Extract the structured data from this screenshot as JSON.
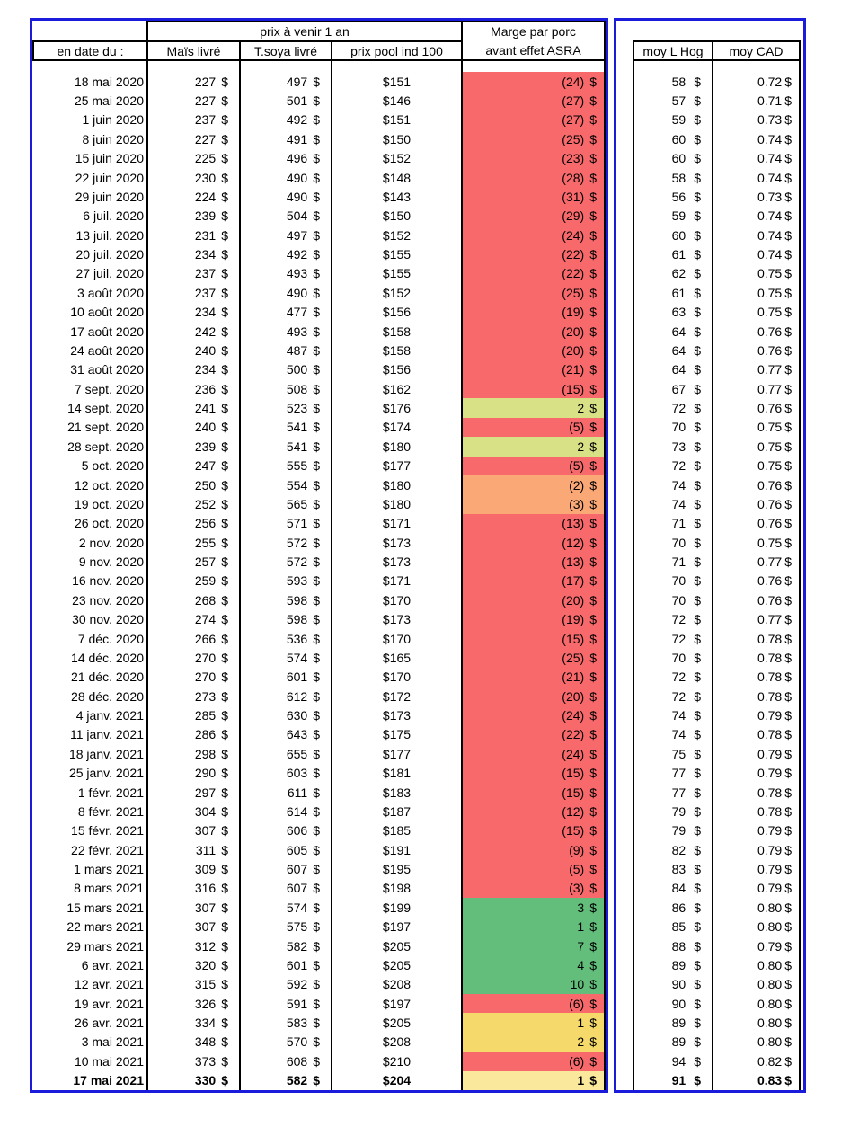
{
  "table": {
    "currency": "$",
    "header": {
      "date_label": "en date du :",
      "group_label": "prix à venir 1 an",
      "col_mais": "Maïs livré",
      "col_soya": "T.soya livré",
      "col_pool": "prix pool ind 100",
      "marge_line1": "Marge par porc",
      "marge_line2": "avant effet ASRA",
      "col_hog": "moy L Hog",
      "col_cad": "moy CAD"
    },
    "colors": {
      "red": "#F8696B",
      "orange": "#FBA877",
      "yellowgreen": "#D9E187",
      "green": "#63BE7B",
      "yellow": "#F6D96B",
      "lightyellow": "#FAE89C",
      "table_border_blue": "#1B1BDC",
      "grid_black": "#000000"
    },
    "rows": [
      {
        "date": "18 mai 2020",
        "mais": "227",
        "soya": "497",
        "pool": "$151",
        "marge": "(24)",
        "color": "red",
        "hog": "58",
        "cad": "0.72"
      },
      {
        "date": "25 mai 2020",
        "mais": "227",
        "soya": "501",
        "pool": "$146",
        "marge": "(27)",
        "color": "red",
        "hog": "57",
        "cad": "0.71"
      },
      {
        "date": "1 juin 2020",
        "mais": "237",
        "soya": "492",
        "pool": "$151",
        "marge": "(27)",
        "color": "red",
        "hog": "59",
        "cad": "0.73"
      },
      {
        "date": "8 juin 2020",
        "mais": "227",
        "soya": "491",
        "pool": "$150",
        "marge": "(25)",
        "color": "red",
        "hog": "60",
        "cad": "0.74"
      },
      {
        "date": "15 juin 2020",
        "mais": "225",
        "soya": "496",
        "pool": "$152",
        "marge": "(23)",
        "color": "red",
        "hog": "60",
        "cad": "0.74"
      },
      {
        "date": "22 juin 2020",
        "mais": "230",
        "soya": "490",
        "pool": "$148",
        "marge": "(28)",
        "color": "red",
        "hog": "58",
        "cad": "0.74"
      },
      {
        "date": "29 juin 2020",
        "mais": "224",
        "soya": "490",
        "pool": "$143",
        "marge": "(31)",
        "color": "red",
        "hog": "56",
        "cad": "0.73"
      },
      {
        "date": "6 juil. 2020",
        "mais": "239",
        "soya": "504",
        "pool": "$150",
        "marge": "(29)",
        "color": "red",
        "hog": "59",
        "cad": "0.74"
      },
      {
        "date": "13 juil. 2020",
        "mais": "231",
        "soya": "497",
        "pool": "$152",
        "marge": "(24)",
        "color": "red",
        "hog": "60",
        "cad": "0.74"
      },
      {
        "date": "20 juil. 2020",
        "mais": "234",
        "soya": "492",
        "pool": "$155",
        "marge": "(22)",
        "color": "red",
        "hog": "61",
        "cad": "0.74"
      },
      {
        "date": "27 juil. 2020",
        "mais": "237",
        "soya": "493",
        "pool": "$155",
        "marge": "(22)",
        "color": "red",
        "hog": "62",
        "cad": "0.75"
      },
      {
        "date": "3 août 2020",
        "mais": "237",
        "soya": "490",
        "pool": "$152",
        "marge": "(25)",
        "color": "red",
        "hog": "61",
        "cad": "0.75"
      },
      {
        "date": "10 août 2020",
        "mais": "234",
        "soya": "477",
        "pool": "$156",
        "marge": "(19)",
        "color": "red",
        "hog": "63",
        "cad": "0.75"
      },
      {
        "date": "17 août 2020",
        "mais": "242",
        "soya": "493",
        "pool": "$158",
        "marge": "(20)",
        "color": "red",
        "hog": "64",
        "cad": "0.76"
      },
      {
        "date": "24 août 2020",
        "mais": "240",
        "soya": "487",
        "pool": "$158",
        "marge": "(20)",
        "color": "red",
        "hog": "64",
        "cad": "0.76"
      },
      {
        "date": "31 août 2020",
        "mais": "234",
        "soya": "500",
        "pool": "$156",
        "marge": "(21)",
        "color": "red",
        "hog": "64",
        "cad": "0.77"
      },
      {
        "date": "7 sept. 2020",
        "mais": "236",
        "soya": "508",
        "pool": "$162",
        "marge": "(15)",
        "color": "red",
        "hog": "67",
        "cad": "0.77"
      },
      {
        "date": "14 sept. 2020",
        "mais": "241",
        "soya": "523",
        "pool": "$176",
        "marge": "2",
        "color": "yellowgreen",
        "hog": "72",
        "cad": "0.76"
      },
      {
        "date": "21 sept. 2020",
        "mais": "240",
        "soya": "541",
        "pool": "$174",
        "marge": "(5)",
        "color": "red",
        "hog": "70",
        "cad": "0.75"
      },
      {
        "date": "28 sept. 2020",
        "mais": "239",
        "soya": "541",
        "pool": "$180",
        "marge": "2",
        "color": "yellowgreen",
        "hog": "73",
        "cad": "0.75"
      },
      {
        "date": "5 oct. 2020",
        "mais": "247",
        "soya": "555",
        "pool": "$177",
        "marge": "(5)",
        "color": "red",
        "hog": "72",
        "cad": "0.75"
      },
      {
        "date": "12 oct. 2020",
        "mais": "250",
        "soya": "554",
        "pool": "$180",
        "marge": "(2)",
        "color": "orange",
        "hog": "74",
        "cad": "0.76"
      },
      {
        "date": "19 oct. 2020",
        "mais": "252",
        "soya": "565",
        "pool": "$180",
        "marge": "(3)",
        "color": "orange",
        "hog": "74",
        "cad": "0.76"
      },
      {
        "date": "26 oct. 2020",
        "mais": "256",
        "soya": "571",
        "pool": "$171",
        "marge": "(13)",
        "color": "red",
        "hog": "71",
        "cad": "0.76"
      },
      {
        "date": "2 nov. 2020",
        "mais": "255",
        "soya": "572",
        "pool": "$173",
        "marge": "(12)",
        "color": "red",
        "hog": "70",
        "cad": "0.75"
      },
      {
        "date": "9 nov. 2020",
        "mais": "257",
        "soya": "572",
        "pool": "$173",
        "marge": "(13)",
        "color": "red",
        "hog": "71",
        "cad": "0.77"
      },
      {
        "date": "16 nov. 2020",
        "mais": "259",
        "soya": "593",
        "pool": "$171",
        "marge": "(17)",
        "color": "red",
        "hog": "70",
        "cad": "0.76"
      },
      {
        "date": "23 nov. 2020",
        "mais": "268",
        "soya": "598",
        "pool": "$170",
        "marge": "(20)",
        "color": "red",
        "hog": "70",
        "cad": "0.76"
      },
      {
        "date": "30 nov. 2020",
        "mais": "274",
        "soya": "598",
        "pool": "$173",
        "marge": "(19)",
        "color": "red",
        "hog": "72",
        "cad": "0.77"
      },
      {
        "date": "7 déc. 2020",
        "mais": "266",
        "soya": "536",
        "pool": "$170",
        "marge": "(15)",
        "color": "red",
        "hog": "72",
        "cad": "0.78"
      },
      {
        "date": "14 déc. 2020",
        "mais": "270",
        "soya": "574",
        "pool": "$165",
        "marge": "(25)",
        "color": "red",
        "hog": "70",
        "cad": "0.78"
      },
      {
        "date": "21 déc. 2020",
        "mais": "270",
        "soya": "601",
        "pool": "$170",
        "marge": "(21)",
        "color": "red",
        "hog": "72",
        "cad": "0.78"
      },
      {
        "date": "28 déc. 2020",
        "mais": "273",
        "soya": "612",
        "pool": "$172",
        "marge": "(20)",
        "color": "red",
        "hog": "72",
        "cad": "0.78"
      },
      {
        "date": "4 janv. 2021",
        "mais": "285",
        "soya": "630",
        "pool": "$173",
        "marge": "(24)",
        "color": "red",
        "hog": "74",
        "cad": "0.79"
      },
      {
        "date": "11 janv. 2021",
        "mais": "286",
        "soya": "643",
        "pool": "$175",
        "marge": "(22)",
        "color": "red",
        "hog": "74",
        "cad": "0.78"
      },
      {
        "date": "18 janv. 2021",
        "mais": "298",
        "soya": "655",
        "pool": "$177",
        "marge": "(24)",
        "color": "red",
        "hog": "75",
        "cad": "0.79"
      },
      {
        "date": "25 janv. 2021",
        "mais": "290",
        "soya": "603",
        "pool": "$181",
        "marge": "(15)",
        "color": "red",
        "hog": "77",
        "cad": "0.79"
      },
      {
        "date": "1 févr. 2021",
        "mais": "297",
        "soya": "611",
        "pool": "$183",
        "marge": "(15)",
        "color": "red",
        "hog": "77",
        "cad": "0.78"
      },
      {
        "date": "8 févr. 2021",
        "mais": "304",
        "soya": "614",
        "pool": "$187",
        "marge": "(12)",
        "color": "red",
        "hog": "79",
        "cad": "0.78"
      },
      {
        "date": "15 févr. 2021",
        "mais": "307",
        "soya": "606",
        "pool": "$185",
        "marge": "(15)",
        "color": "red",
        "hog": "79",
        "cad": "0.79"
      },
      {
        "date": "22 févr. 2021",
        "mais": "311",
        "soya": "605",
        "pool": "$191",
        "marge": "(9)",
        "color": "red",
        "hog": "82",
        "cad": "0.79"
      },
      {
        "date": "1 mars 2021",
        "mais": "309",
        "soya": "607",
        "pool": "$195",
        "marge": "(5)",
        "color": "red",
        "hog": "83",
        "cad": "0.79"
      },
      {
        "date": "8 mars 2021",
        "mais": "316",
        "soya": "607",
        "pool": "$198",
        "marge": "(3)",
        "color": "red",
        "hog": "84",
        "cad": "0.79"
      },
      {
        "date": "15 mars 2021",
        "mais": "307",
        "soya": "574",
        "pool": "$199",
        "marge": "3",
        "color": "green",
        "hog": "86",
        "cad": "0.80"
      },
      {
        "date": "22 mars 2021",
        "mais": "307",
        "soya": "575",
        "pool": "$197",
        "marge": "1",
        "color": "green",
        "hog": "85",
        "cad": "0.80"
      },
      {
        "date": "29 mars 2021",
        "mais": "312",
        "soya": "582",
        "pool": "$205",
        "marge": "7",
        "color": "green",
        "hog": "88",
        "cad": "0.79"
      },
      {
        "date": "6 avr. 2021",
        "mais": "320",
        "soya": "601",
        "pool": "$205",
        "marge": "4",
        "color": "green",
        "hog": "89",
        "cad": "0.80"
      },
      {
        "date": "12 avr. 2021",
        "mais": "315",
        "soya": "592",
        "pool": "$208",
        "marge": "10",
        "color": "green",
        "hog": "90",
        "cad": "0.80"
      },
      {
        "date": "19 avr. 2021",
        "mais": "326",
        "soya": "591",
        "pool": "$197",
        "marge": "(6)",
        "color": "red",
        "hog": "90",
        "cad": "0.80"
      },
      {
        "date": "26 avr. 2021",
        "mais": "334",
        "soya": "583",
        "pool": "$205",
        "marge": "1",
        "color": "yellow",
        "hog": "89",
        "cad": "0.80"
      },
      {
        "date": "3 mai 2021",
        "mais": "348",
        "soya": "570",
        "pool": "$208",
        "marge": "2",
        "color": "yellow",
        "hog": "89",
        "cad": "0.80"
      },
      {
        "date": "10 mai 2021",
        "mais": "373",
        "soya": "608",
        "pool": "$210",
        "marge": "(6)",
        "color": "red",
        "hog": "94",
        "cad": "0.82"
      },
      {
        "date": "17 mai 2021",
        "mais": "330",
        "soya": "582",
        "pool": "$204",
        "marge": "1",
        "color": "lightyellow",
        "hog": "91",
        "cad": "0.83",
        "bold": true
      }
    ]
  }
}
